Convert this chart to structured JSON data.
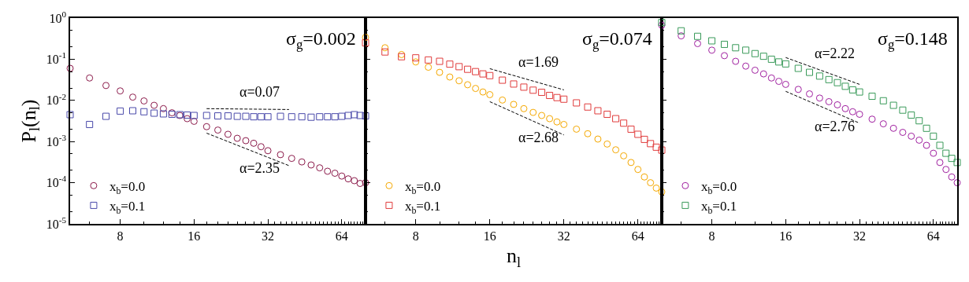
{
  "chart_data": [
    {
      "type": "scatter",
      "log": "xy",
      "legend": "bottom left",
      "tick_labels": "xy",
      "ylabel": "P$_{l}$(n$_{l}$)",
      "xlim": [
        5,
        80
      ],
      "xticks": [
        8,
        16,
        32,
        64
      ],
      "ylim": [
        1e-05,
        1
      ],
      "yticks": [
        {
          "value": 1e-05,
          "label": "10$^{-5}$"
        },
        {
          "value": 0.0001,
          "label": "10$^{-4}$"
        },
        {
          "value": 0.001,
          "label": "10$^{-3}$"
        },
        {
          "value": 0.01,
          "label": "10$^{-2}$"
        },
        {
          "value": 0.1,
          "label": "10$^{-1}$"
        },
        {
          "value": 1,
          "label": "10$^{0}$"
        }
      ],
      "annotations": [
        "σ$_{g}$=0.002"
      ],
      "x": [
        5,
        6,
        7,
        8,
        9,
        10,
        11,
        12,
        13,
        14,
        15,
        16,
        18,
        20,
        22,
        24,
        26,
        28,
        30,
        32,
        36,
        40,
        44,
        48,
        52,
        56,
        60,
        64,
        68,
        72,
        76,
        80
      ],
      "series": [
        {
          "name": "x$_{b}$=0.0",
          "color": "#8b1a4a",
          "marker": "circle",
          "values": [
            0.06,
            0.035,
            0.023,
            0.017,
            0.012,
            0.0097,
            0.0076,
            0.0063,
            0.005,
            0.0043,
            0.0036,
            0.0031,
            0.0023,
            0.0019,
            0.0015,
            0.0012,
            0.00105,
            0.00091,
            0.00075,
            0.0006,
            0.00048,
            0.00039,
            0.00032,
            0.00027,
            0.00023,
            0.00019,
            0.00017,
            0.000145,
            0.000124,
            0.000112,
            9.6e-05,
            0.0001
          ]
        },
        {
          "name": "x$_{b}$=0.1",
          "color": "#4a4aaa",
          "marker": "square",
          "values": [
            0.0045,
            0.0026,
            0.0041,
            0.0055,
            0.0056,
            0.0053,
            0.0049,
            0.0047,
            0.0046,
            0.0045,
            0.0044,
            0.0043,
            0.0043,
            0.0042,
            0.0042,
            0.0041,
            0.0041,
            0.004,
            0.004,
            0.004,
            0.0041,
            0.004,
            0.004,
            0.0039,
            0.004,
            0.004,
            0.004,
            0.0041,
            0.0043,
            0.0045,
            0.0043,
            0.0042
          ]
        },
        {
          "type": "line",
          "name": "α=0.07",
          "color": "#000000",
          "line_style": "dashed",
          "x": [
            18,
            39
          ],
          "values": [
            0.0063,
            0.006
          ]
        },
        {
          "type": "line",
          "name": "α=2.35",
          "color": "#000000",
          "line_style": "dashed",
          "x": [
            18,
            39
          ],
          "values": [
            0.0016,
            0.00026
          ]
        }
      ]
    },
    {
      "type": "scatter",
      "log": "xy",
      "legend": "bottom left",
      "tick_labels": "x",
      "xlabel": "n$_{l}$",
      "xlim": [
        5,
        80
      ],
      "xticks": [
        8,
        16,
        32,
        64
      ],
      "ylim": [
        1e-05,
        1
      ],
      "yticks": [
        {
          "value": 1e-05,
          "label": null
        },
        {
          "value": 0.0001,
          "label": null
        },
        {
          "value": 0.001,
          "label": null
        },
        {
          "value": 0.01,
          "label": null
        },
        {
          "value": 0.1,
          "label": null
        },
        {
          "value": 1,
          "label": null
        }
      ],
      "annotations": [
        "σ$_{g}$=0.074"
      ],
      "x": [
        5,
        6,
        7,
        8,
        9,
        10,
        11,
        12,
        13,
        14,
        15,
        16,
        18,
        20,
        22,
        24,
        26,
        28,
        30,
        32,
        36,
        40,
        44,
        48,
        52,
        56,
        60,
        64,
        68,
        72,
        76,
        80
      ],
      "series": [
        {
          "name": "x$_{b}$=0.0",
          "color": "#f5a800",
          "marker": "circle",
          "values": [
            0.34,
            0.19,
            0.13,
            0.086,
            0.064,
            0.048,
            0.037,
            0.03,
            0.024,
            0.0195,
            0.016,
            0.0138,
            0.0102,
            0.008,
            0.0063,
            0.0051,
            0.0043,
            0.0036,
            0.003,
            0.0026,
            0.002,
            0.00155,
            0.00115,
            0.00087,
            0.00063,
            0.00045,
            0.00031,
            0.00021,
            0.000138,
            0.0001,
            7.4e-05,
            6e-05
          ]
        },
        {
          "name": "x$_{b}$=0.1",
          "color": "#e03c3c",
          "marker": "square",
          "values": [
            0.25,
            0.15,
            0.115,
            0.108,
            0.096,
            0.089,
            0.076,
            0.066,
            0.057,
            0.05,
            0.044,
            0.04,
            0.031,
            0.025,
            0.021,
            0.0177,
            0.0157,
            0.0132,
            0.0117,
            0.0107,
            0.0087,
            0.0069,
            0.0056,
            0.0046,
            0.0036,
            0.0028,
            0.002,
            0.0015,
            0.00113,
            0.00089,
            0.00073,
            0.00062
          ]
        },
        {
          "type": "line",
          "name": "α=1.69",
          "color": "#000000",
          "line_style": "dashed",
          "x": [
            16,
            32
          ],
          "values": [
            0.059,
            0.018
          ]
        },
        {
          "type": "line",
          "name": "α=2.68",
          "color": "#000000",
          "line_style": "dashed",
          "x": [
            16,
            32
          ],
          "values": [
            0.0093,
            0.00145
          ]
        }
      ]
    },
    {
      "type": "scatter",
      "log": "xy",
      "legend": "bottom left",
      "tick_labels": "x",
      "xlim": [
        5,
        80
      ],
      "xticks": [
        8,
        16,
        32,
        64
      ],
      "ylim": [
        1e-05,
        1
      ],
      "yticks": [
        {
          "value": 1e-05,
          "label": null
        },
        {
          "value": 0.0001,
          "label": null
        },
        {
          "value": 0.001,
          "label": null
        },
        {
          "value": 0.01,
          "label": null
        },
        {
          "value": 0.1,
          "label": null
        },
        {
          "value": 1,
          "label": null
        }
      ],
      "annotations": [
        "σ$_{g}$=0.148"
      ],
      "x": [
        5,
        6,
        7,
        8,
        9,
        10,
        11,
        12,
        13,
        14,
        15,
        16,
        18,
        20,
        22,
        24,
        26,
        28,
        30,
        32,
        36,
        40,
        44,
        48,
        52,
        56,
        60,
        64,
        68,
        72,
        76,
        80
      ],
      "series": [
        {
          "name": "x$_{b}$=0.0",
          "color": "#a020a0",
          "marker": "circle",
          "values": [
            0.67,
            0.37,
            0.24,
            0.166,
            0.122,
            0.089,
            0.068,
            0.054,
            0.044,
            0.035,
            0.029,
            0.0245,
            0.0185,
            0.0144,
            0.0114,
            0.0093,
            0.0078,
            0.0063,
            0.0053,
            0.0046,
            0.0035,
            0.0027,
            0.0021,
            0.00167,
            0.00135,
            0.00108,
            0.00081,
            0.00052,
            0.00031,
            0.00021,
            0.000138,
            0.0001
          ]
        },
        {
          "name": "x$_{b}$=0.1",
          "color": "#3a9a5a",
          "marker": "square",
          "values": [
            0.78,
            0.49,
            0.36,
            0.28,
            0.23,
            0.19,
            0.166,
            0.137,
            0.118,
            0.1,
            0.086,
            0.077,
            0.06,
            0.048,
            0.039,
            0.032,
            0.027,
            0.022,
            0.018,
            0.016,
            0.0126,
            0.0098,
            0.0076,
            0.0058,
            0.0044,
            0.0032,
            0.0021,
            0.00135,
            0.00081,
            0.00052,
            0.00039,
            0.00031
          ]
        },
        {
          "type": "line",
          "name": "α=2.22",
          "color": "#000000",
          "line_style": "dashed",
          "x": [
            16,
            32
          ],
          "values": [
            0.11,
            0.0245
          ]
        },
        {
          "type": "line",
          "name": "α=2.76",
          "color": "#000000",
          "line_style": "dashed",
          "x": [
            16,
            32
          ],
          "values": [
            0.0166,
            0.0028
          ]
        }
      ]
    }
  ]
}
